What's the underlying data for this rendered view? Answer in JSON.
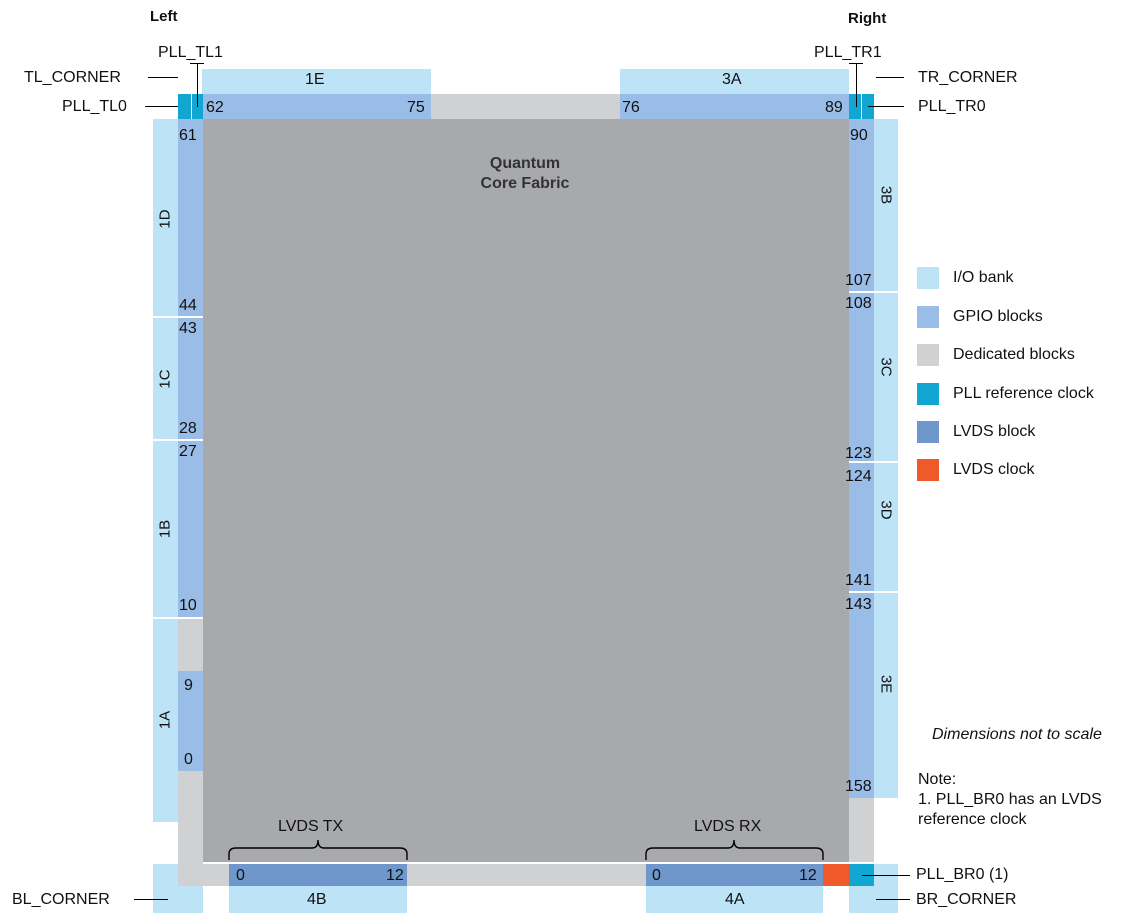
{
  "headers": {
    "left": "Left",
    "right": "Right"
  },
  "core": {
    "line1": "Quantum",
    "line2": "Core Fabric"
  },
  "banks": {
    "top_left": "1E",
    "top_right": "3A",
    "left": [
      "1D",
      "1C",
      "1B",
      "1A"
    ],
    "right": [
      "3B",
      "3C",
      "3D",
      "3E"
    ],
    "bottom_left": "4B",
    "bottom_right": "4A"
  },
  "numbers": {
    "top": [
      "62",
      "75",
      "76",
      "89"
    ],
    "left": [
      "61",
      "44",
      "43",
      "28",
      "27",
      "10",
      "9",
      "0"
    ],
    "right": [
      "90",
      "107",
      "108",
      "123",
      "124",
      "141",
      "143",
      "158"
    ],
    "bottom": [
      "0",
      "12",
      "0",
      "12"
    ]
  },
  "callouts": {
    "pll_tl1": "PLL_TL1",
    "tl_corner": "TL_CORNER",
    "pll_tl0": "PLL_TL0",
    "pll_tr1": "PLL_TR1",
    "tr_corner": "TR_CORNER",
    "pll_tr0": "PLL_TR0",
    "pll_br0": "PLL_BR0 (1)",
    "br_corner": "BR_CORNER",
    "bl_corner": "BL_CORNER"
  },
  "groups": {
    "lvds_tx": "LVDS TX",
    "lvds_rx": "LVDS RX"
  },
  "legend": [
    {
      "label": "I/O bank",
      "color": "#bde3f6"
    },
    {
      "label": "GPIO blocks",
      "color": "#99bde6"
    },
    {
      "label": "Dedicated blocks",
      "color": "#d0d1d3"
    },
    {
      "label": "PLL reference clock",
      "color": "#12a7d3"
    },
    {
      "label": "LVDS block",
      "color": "#6f97cb"
    },
    {
      "label": "LVDS clock",
      "color": "#f0592a"
    }
  ],
  "notes": {
    "scale": "Dimensions not to scale",
    "note_title": "Note:",
    "note_line1": "1. PLL_BR0 has an LVDS",
    "note_line2": "reference clock"
  }
}
